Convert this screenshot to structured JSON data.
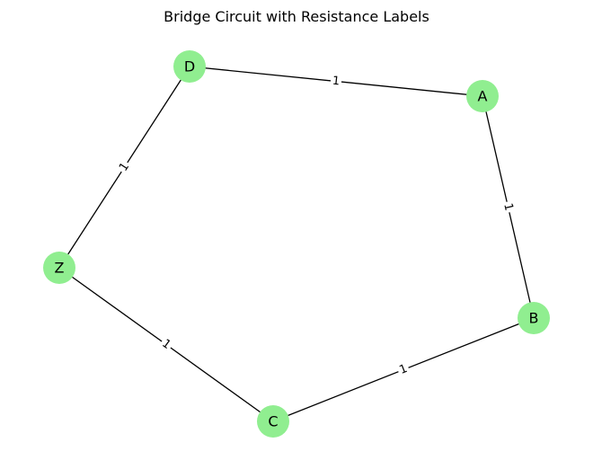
{
  "title": "Bridge Circuit with Resistance Labels",
  "node_color": "#90ee90",
  "edge_color": "#000000",
  "nodes": [
    {
      "id": "D",
      "label": "D"
    },
    {
      "id": "A",
      "label": "A"
    },
    {
      "id": "Z",
      "label": "Z"
    },
    {
      "id": "B",
      "label": "B"
    },
    {
      "id": "C",
      "label": "C"
    }
  ],
  "edges": [
    {
      "source": "D",
      "target": "A",
      "label": "1"
    },
    {
      "source": "A",
      "target": "B",
      "label": "1"
    },
    {
      "source": "B",
      "target": "C",
      "label": "1"
    },
    {
      "source": "C",
      "target": "Z",
      "label": "1"
    },
    {
      "source": "Z",
      "target": "D",
      "label": "1"
    }
  ]
}
